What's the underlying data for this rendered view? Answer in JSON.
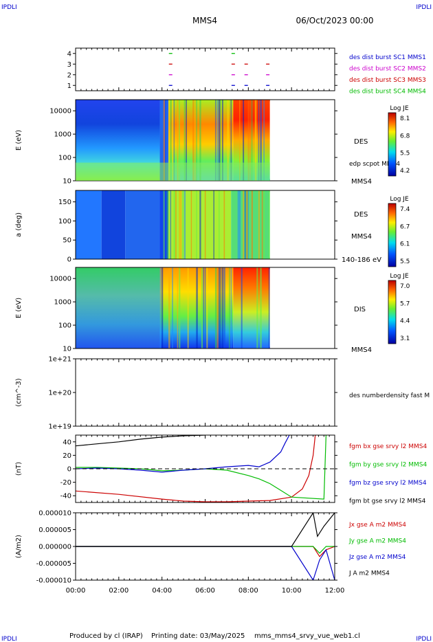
{
  "header": {
    "corner_label": "IPDLI",
    "spacecraft": "MMS4",
    "date": "06/Oct/2023 00:00"
  },
  "footer": {
    "producer": "Produced by cl (IRAP)",
    "printing": "Printing date: 03/May/2025",
    "file": "mms_mms4_srvy_vue_web1.cl"
  },
  "time_axis": {
    "ticks": [
      "00:00",
      "02:00",
      "04:00",
      "06:00",
      "08:00",
      "10:00",
      "12:00"
    ],
    "range_hours": [
      0,
      12
    ]
  },
  "colors": {
    "mms1": "#0000cc",
    "mms2": "#cc00cc",
    "mms3": "#cc0000",
    "mms4": "#00bb00",
    "bx": "#cc0000",
    "by": "#00bb00",
    "bz": "#0000cc",
    "bt": "#000000"
  },
  "chart_data": [
    {
      "type": "scatter",
      "title": "",
      "ylabel": "",
      "yticks": [
        "1",
        "2",
        "3",
        "4"
      ],
      "ylim": [
        0.5,
        4.5
      ],
      "legend": [
        "des dist burst SC1 MMS1",
        "des dist burst SC2 MMS2",
        "des dist burst SC3 MMS3",
        "des dist burst SC4 MMS4"
      ],
      "series": [
        {
          "name": "des dist burst SC1 MMS1",
          "y": 1,
          "x_hours": [
            4.4,
            7.3,
            7.9,
            8.9
          ]
        },
        {
          "name": "des dist burst SC2 MMS2",
          "y": 2,
          "x_hours": [
            4.4,
            7.3,
            7.9,
            8.9
          ]
        },
        {
          "name": "des dist burst SC3 MMS3",
          "y": 3,
          "x_hours": [
            4.4,
            7.3,
            7.9,
            8.9
          ]
        },
        {
          "name": "des dist burst SC4 MMS4",
          "y": 4,
          "x_hours": [
            4.4,
            7.3
          ]
        }
      ]
    },
    {
      "type": "heatmap",
      "ylabel": "E (eV)",
      "yscale": "log",
      "ylim": [
        10,
        30000
      ],
      "yticks": [
        "10",
        "100",
        "1000",
        "10000"
      ],
      "instrument": "DES",
      "overlay_label": "edp scpot MMS4",
      "spacecraft_label": "MMS4",
      "colorbar": {
        "title": "Log JE",
        "ticks": [
          "8.1",
          "6.8",
          "5.5",
          "4.2"
        ]
      },
      "data_end_hours": 9.0
    },
    {
      "type": "heatmap",
      "ylabel": "a (deg)",
      "ylim": [
        0,
        180
      ],
      "yticks": [
        "0",
        "50",
        "100",
        "150"
      ],
      "instrument": "DES",
      "spacecraft_label": "MMS4",
      "energy_label": "140-186 eV",
      "colorbar": {
        "title": "Log JE",
        "ticks": [
          "7.4",
          "6.7",
          "6.1",
          "5.5"
        ]
      },
      "data_end_hours": 9.0
    },
    {
      "type": "heatmap",
      "ylabel": "E (eV)",
      "yscale": "log",
      "ylim": [
        10,
        30000
      ],
      "yticks": [
        "10",
        "100",
        "1000",
        "10000"
      ],
      "instrument": "DIS",
      "spacecraft_label": "MMS4",
      "colorbar": {
        "title": "Log JE",
        "ticks": [
          "7.0",
          "5.7",
          "4.4",
          "3.1"
        ]
      },
      "data_end_hours": 9.0
    },
    {
      "type": "line",
      "ylabel": "(cm^-3)",
      "yscale": "log",
      "yticks": [
        "1e+19",
        "1e+20",
        "1e+21"
      ],
      "legend": [
        "des numberdensity fast M"
      ],
      "series": []
    },
    {
      "type": "line",
      "ylabel": "(nT)",
      "ylim": [
        -50,
        50
      ],
      "yticks": [
        "-40",
        "-20",
        "0",
        "20",
        "40"
      ],
      "series": [
        {
          "name": "fgm bx gse srvy l2 MMS4",
          "x": [
            0,
            2,
            4,
            5,
            6,
            7,
            8,
            9,
            10,
            10.5,
            10.8,
            11,
            11.1
          ],
          "y": [
            -33,
            -38,
            -45,
            -48,
            -49,
            -49,
            -48,
            -47,
            -42,
            -30,
            -10,
            20,
            50
          ]
        },
        {
          "name": "fgm by gse srvy l2 MMS4",
          "x": [
            0,
            1,
            2,
            3,
            4,
            5,
            6,
            7,
            8,
            8.5,
            9,
            9.5,
            10,
            11.5,
            11.6
          ],
          "y": [
            2,
            2,
            1,
            0,
            -3,
            -2,
            0,
            -2,
            -10,
            -15,
            -22,
            -32,
            -42,
            -45,
            50
          ]
        },
        {
          "name": "fgm bz gse srvy l2 MMS4",
          "x": [
            0,
            1,
            2,
            3,
            4,
            5,
            6,
            7,
            8,
            8.5,
            9,
            9.5,
            9.7,
            9.9
          ],
          "y": [
            0,
            1,
            0,
            -2,
            -5,
            -2,
            0,
            3,
            5,
            3,
            10,
            25,
            38,
            50
          ]
        },
        {
          "name": "fgm bt gse srvy l2 MMS4",
          "x": [
            0,
            1,
            2,
            3,
            4,
            5,
            6
          ],
          "y": [
            34,
            37,
            40,
            44,
            47,
            49,
            50
          ]
        }
      ]
    },
    {
      "type": "line",
      "ylabel": "(A/m2)",
      "ylim": [
        -1e-05,
        1e-05
      ],
      "yticks": [
        "-0.000010",
        "-0.000005",
        "0.000000",
        "0.000005",
        "0.000010"
      ],
      "series": [
        {
          "name": "Jx gse A m2 MMS4",
          "x": [
            0,
            10,
            11,
            11.3,
            11.6,
            12
          ],
          "y": [
            0,
            0,
            0,
            -3e-06,
            -1e-06,
            0
          ]
        },
        {
          "name": "Jy gse A m2 MMS4",
          "x": [
            0,
            10,
            11,
            11.3,
            11.6,
            12
          ],
          "y": [
            0,
            0,
            0,
            -2e-06,
            0,
            0
          ]
        },
        {
          "name": "Jz gse A m2 MMS4",
          "x": [
            0,
            10,
            11,
            11.3,
            11.6,
            12
          ],
          "y": [
            0,
            0,
            -1e-05,
            -4e-06,
            -1e-06,
            -1e-05
          ]
        },
        {
          "name": "J A m2 MMS4",
          "x": [
            0,
            10,
            11,
            11.2,
            11.5,
            12
          ],
          "y": [
            0,
            0,
            1e-05,
            3e-06,
            6e-06,
            1e-05
          ]
        }
      ]
    }
  ]
}
